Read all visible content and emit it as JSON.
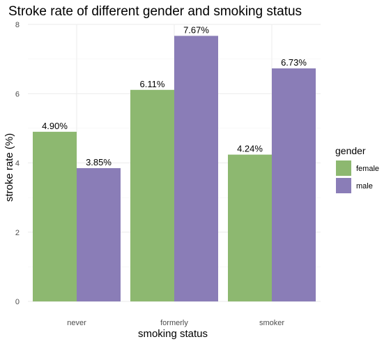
{
  "chart_data": {
    "type": "bar",
    "title": "Stroke rate of different gender and smoking status",
    "xlabel": "smoking status",
    "ylabel": "stroke rate (%)",
    "categories": [
      "never",
      "formerly",
      "smoker"
    ],
    "series": [
      {
        "name": "female",
        "values": [
          4.9,
          6.11,
          4.24
        ],
        "labels": [
          "4.90%",
          "6.11%",
          "4.24%"
        ],
        "color": "#8db870"
      },
      {
        "name": "male",
        "values": [
          3.85,
          7.67,
          6.73
        ],
        "labels": [
          "3.85%",
          "7.67%",
          "6.73%"
        ],
        "color": "#8a7db7"
      }
    ],
    "ylim": [
      0,
      8
    ],
    "yticks": [
      0,
      2,
      4,
      6,
      8
    ],
    "grid": true,
    "legend": {
      "title": "gender",
      "position": "right"
    }
  }
}
